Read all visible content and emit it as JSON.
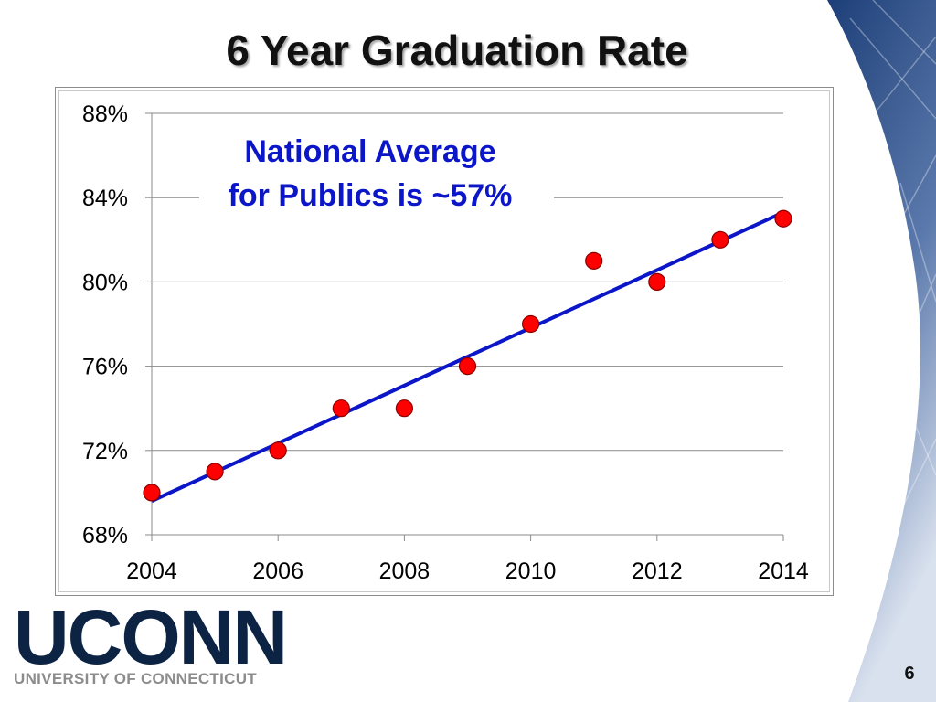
{
  "slide": {
    "title": "6 Year Graduation Rate",
    "page_number": "6"
  },
  "logo": {
    "wordmark": "UCONN",
    "subtitle": "UNIVERSITY OF CONNECTICUT",
    "color": "#0c2344"
  },
  "chart_data": {
    "type": "scatter",
    "x": [
      2004,
      2005,
      2006,
      2007,
      2008,
      2009,
      2010,
      2011,
      2012,
      2013,
      2014
    ],
    "y": [
      70,
      71,
      72,
      74,
      74,
      76,
      78,
      81,
      80,
      82,
      83
    ],
    "unit": "%",
    "xlim": [
      2004,
      2014
    ],
    "ylim": [
      68,
      88
    ],
    "x_ticks": [
      "2004",
      "2006",
      "2008",
      "2010",
      "2012",
      "2014"
    ],
    "y_ticks": [
      "68%",
      "72%",
      "76%",
      "80%",
      "84%",
      "88%"
    ],
    "trendline": {
      "type": "linear",
      "start": [
        2004,
        69.6
      ],
      "end": [
        2014,
        83.3
      ]
    },
    "annotation": [
      "National Average",
      "for Publics is ~57%"
    ],
    "grid": true,
    "marker_color": "#ff0000",
    "trendline_color": "#0a16c8",
    "annotation_color": "#0a16c8"
  }
}
